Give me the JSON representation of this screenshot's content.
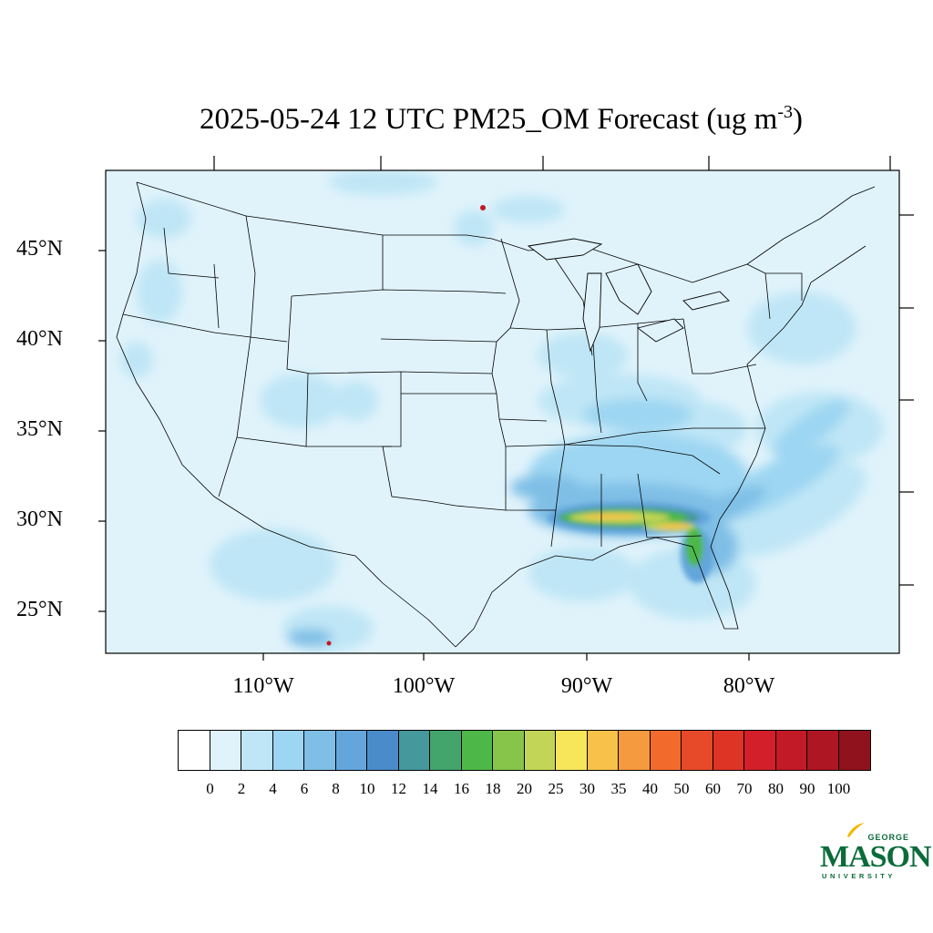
{
  "title": {
    "main": "2025-05-24 12 UTC PM25_OM Forecast (ug m",
    "sup": "-3",
    "close": ")"
  },
  "lat_labels": [
    "45°N",
    "40°N",
    "35°N",
    "30°N",
    "25°N"
  ],
  "lon_labels": [
    "110°W",
    "100°W",
    "90°W",
    "80°W"
  ],
  "colorbar": {
    "colors": [
      "#ffffff",
      "#e0f3fb",
      "#bfe6f6",
      "#9dd6f2",
      "#7fbfe6",
      "#64a6dc",
      "#4a8cc9",
      "#45989c",
      "#43a46c",
      "#4db847",
      "#86c54a",
      "#c3d556",
      "#f7e65a",
      "#f7c14a",
      "#f59a3e",
      "#f26b2d",
      "#e64a28",
      "#dd3426",
      "#d31f2a",
      "#c21a26",
      "#ad1622",
      "#8f121c"
    ],
    "labels": [
      "0",
      "2",
      "4",
      "6",
      "8",
      "10",
      "12",
      "14",
      "16",
      "18",
      "20",
      "25",
      "30",
      "35",
      "40",
      "50",
      "60",
      "70",
      "80",
      "90",
      "100"
    ]
  },
  "logo": {
    "george": "GEORGE",
    "mason": "MASON",
    "university": "UNIVERSITY"
  }
}
